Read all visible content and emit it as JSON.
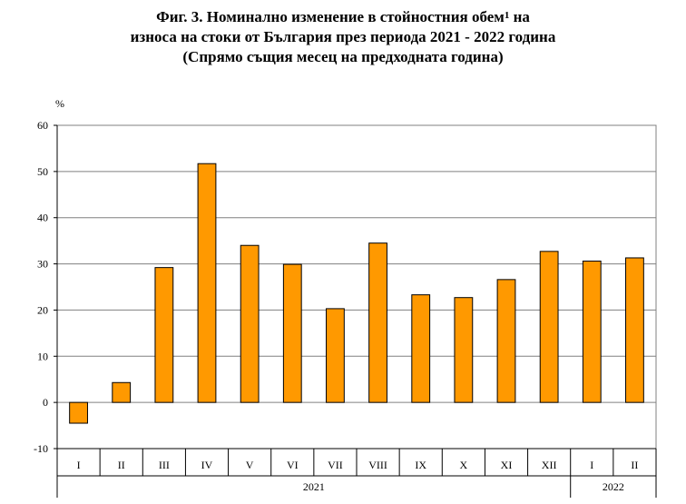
{
  "title": {
    "line1_main": "Фиг. 3. Номинално изменение в стойностния обем",
    "line1_sup": "1",
    "line1_end": " на",
    "line2": "износа на стоки от България през периода 2021 - 2022 година",
    "line3": "(Спрямо същия месец на предходната година)"
  },
  "chart_data": {
    "type": "bar",
    "ylabel": "%",
    "ylim": [
      -10,
      60
    ],
    "yticks": [
      -10,
      0,
      10,
      20,
      30,
      40,
      50,
      60
    ],
    "grid": true,
    "bar_color": "#FF9900",
    "categories": [
      "I",
      "II",
      "III",
      "IV",
      "V",
      "VI",
      "VII",
      "VIII",
      "IX",
      "X",
      "XI",
      "XII",
      "I",
      "II"
    ],
    "values": [
      -4.5,
      4.3,
      29.2,
      51.7,
      34.0,
      29.9,
      20.3,
      34.5,
      23.3,
      22.7,
      26.6,
      32.7,
      30.6,
      31.3
    ],
    "groups": [
      {
        "label": "2021",
        "count": 12
      },
      {
        "label": "2022",
        "count": 2
      }
    ]
  }
}
